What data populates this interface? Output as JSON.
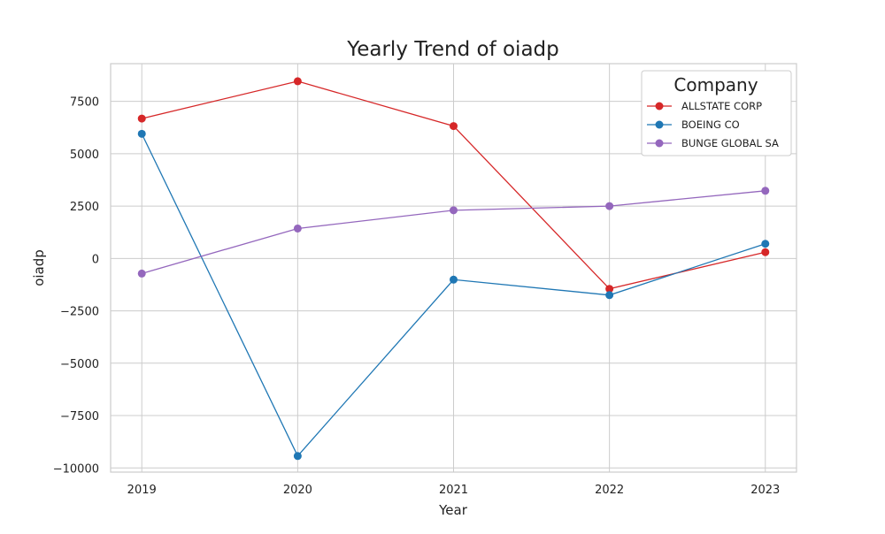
{
  "chart_data": {
    "type": "line",
    "title": "Yearly Trend of oiadp",
    "xlabel": "Year",
    "ylabel": "oiadp",
    "x": [
      2019,
      2020,
      2021,
      2022,
      2023
    ],
    "x_tick_labels": [
      "2019",
      "2020",
      "2021",
      "2022",
      "2023"
    ],
    "y_ticks": [
      -10000,
      -7500,
      -5000,
      -2500,
      0,
      2500,
      5000,
      7500
    ],
    "y_tick_labels": [
      "−10000",
      "−7500",
      "−5000",
      "−2500",
      "0",
      "2500",
      "5000",
      "7500"
    ],
    "xlim": [
      2018.8,
      2023.2
    ],
    "ylim": [
      -10200,
      9300
    ],
    "grid": true,
    "legend": {
      "title": "Company",
      "position": "top-right"
    },
    "series": [
      {
        "name": "ALLSTATE CORP",
        "color": "#d62728",
        "values": [
          6680,
          8460,
          6320,
          -1450,
          300
        ]
      },
      {
        "name": "BOEING CO",
        "color": "#1f77b4",
        "values": [
          5950,
          -9430,
          -1010,
          -1750,
          700
        ]
      },
      {
        "name": "BUNGE GLOBAL SA",
        "color": "#9467bd",
        "values": [
          -720,
          1430,
          2300,
          2500,
          3230
        ]
      }
    ]
  }
}
